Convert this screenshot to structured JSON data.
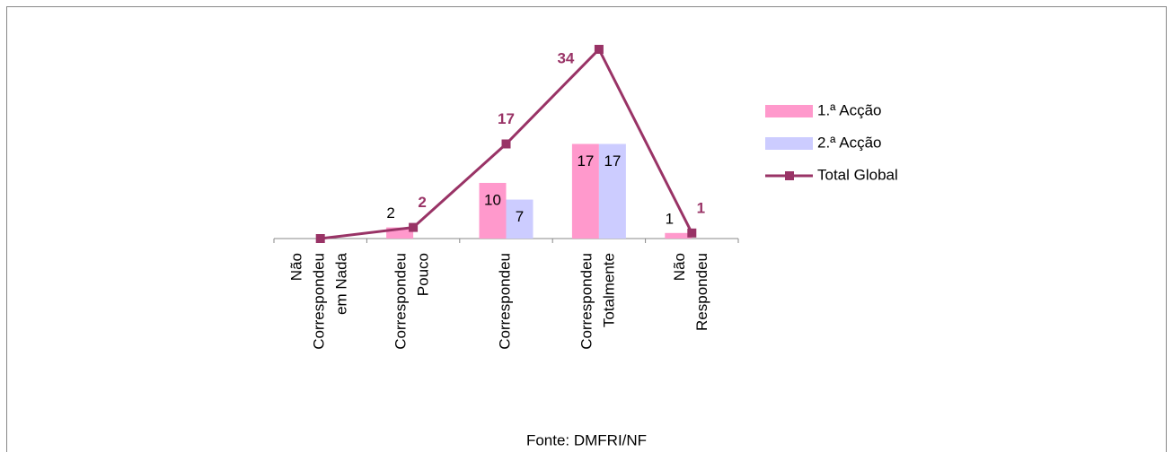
{
  "chart_data": {
    "type": "bar-line",
    "categories": [
      "Não\nCorrespondeu\nem Nada",
      "Correspondeu\nPouco",
      "Correspondeu",
      "Correspondeu\nTotalmente",
      "Não\nRespondeu"
    ],
    "series": [
      {
        "name": "1.ª Acção",
        "type": "bar",
        "color": "#ff99cc",
        "values": [
          0,
          2,
          10,
          17,
          1
        ],
        "value_labels": [
          null,
          "2",
          "10",
          "17",
          "1"
        ]
      },
      {
        "name": "2.ª Acção",
        "type": "bar",
        "color": "#ccccff",
        "values": [
          0,
          0,
          7,
          17,
          0
        ],
        "value_labels": [
          null,
          null,
          "7",
          "17",
          null
        ]
      },
      {
        "name": "Total Global",
        "type": "line",
        "color": "#993366",
        "values": [
          0,
          2,
          17,
          34,
          1
        ],
        "value_labels": [
          null,
          "2",
          "17",
          "34",
          "1"
        ]
      }
    ],
    "source": "Fonte: DMFRI/NF"
  }
}
